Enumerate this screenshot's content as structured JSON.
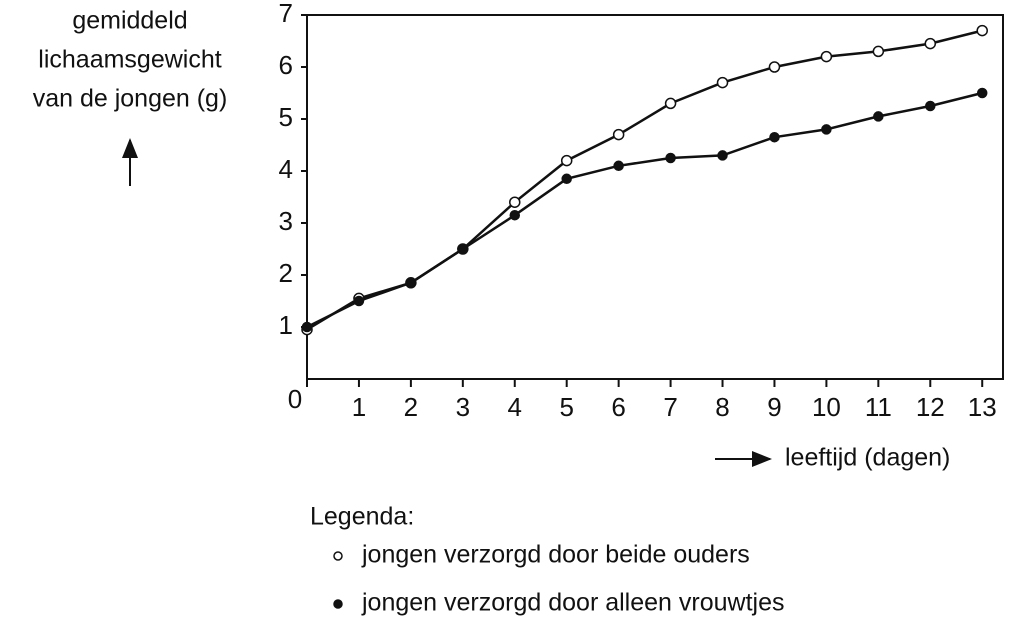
{
  "chart_data": {
    "type": "line",
    "ylabel": [
      "gemiddeld",
      "lichaamsgewicht",
      "van de jongen (g)"
    ],
    "xlabel": "leeftijd (dagen)",
    "legend_title": "Legenda:",
    "x": [
      0,
      1,
      2,
      3,
      4,
      5,
      6,
      7,
      8,
      9,
      10,
      11,
      12,
      13
    ],
    "series": [
      {
        "name": "jongen verzorgd door beide ouders",
        "color": "#111111",
        "marker": "open",
        "values": [
          0.95,
          1.55,
          1.85,
          2.5,
          3.4,
          4.2,
          4.7,
          5.3,
          5.7,
          6.0,
          6.2,
          6.3,
          6.45,
          6.7
        ]
      },
      {
        "name": "jongen verzorgd door alleen vrouwtjes",
        "color": "#111111",
        "marker": "filled",
        "values": [
          1.0,
          1.5,
          1.85,
          2.5,
          3.15,
          3.85,
          4.1,
          4.25,
          4.3,
          4.65,
          4.8,
          5.05,
          5.25,
          5.5
        ]
      }
    ],
    "xlim": [
      0,
      13.4
    ],
    "ylim": [
      0,
      7
    ],
    "xticks": [
      0,
      1,
      2,
      3,
      4,
      5,
      6,
      7,
      8,
      9,
      10,
      11,
      12,
      13
    ],
    "yticks": [
      1,
      2,
      3,
      4,
      5,
      6,
      7
    ]
  }
}
